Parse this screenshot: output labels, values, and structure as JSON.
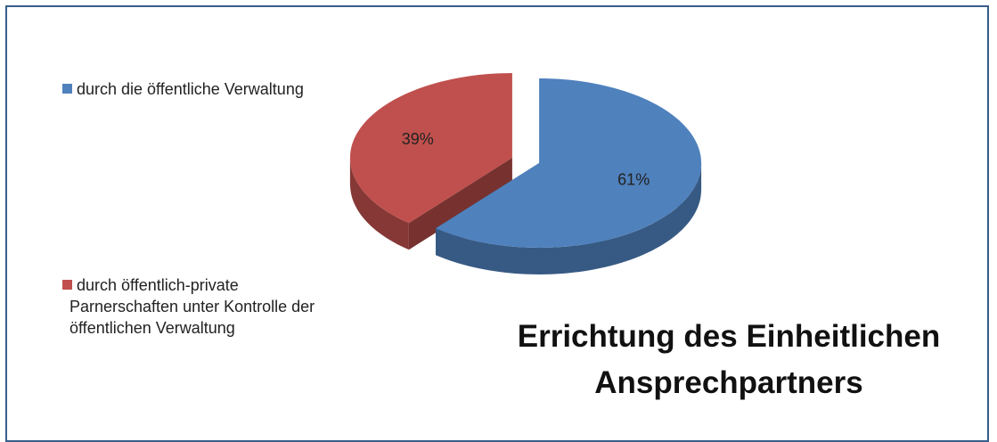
{
  "chart_data": {
    "type": "pie",
    "title": "Errichtung des Einheitlichen Ansprechpartners",
    "categories": [
      "durch die öffentliche Verwaltung",
      "durch öffentlich-private Parnerschaften unter Kontrolle der öffentlichen Verwaltung"
    ],
    "values": [
      61,
      39
    ],
    "value_labels": [
      "61%",
      "39%"
    ],
    "colors": [
      "#4f81bd",
      "#c0504d"
    ],
    "legend": "left"
  }
}
